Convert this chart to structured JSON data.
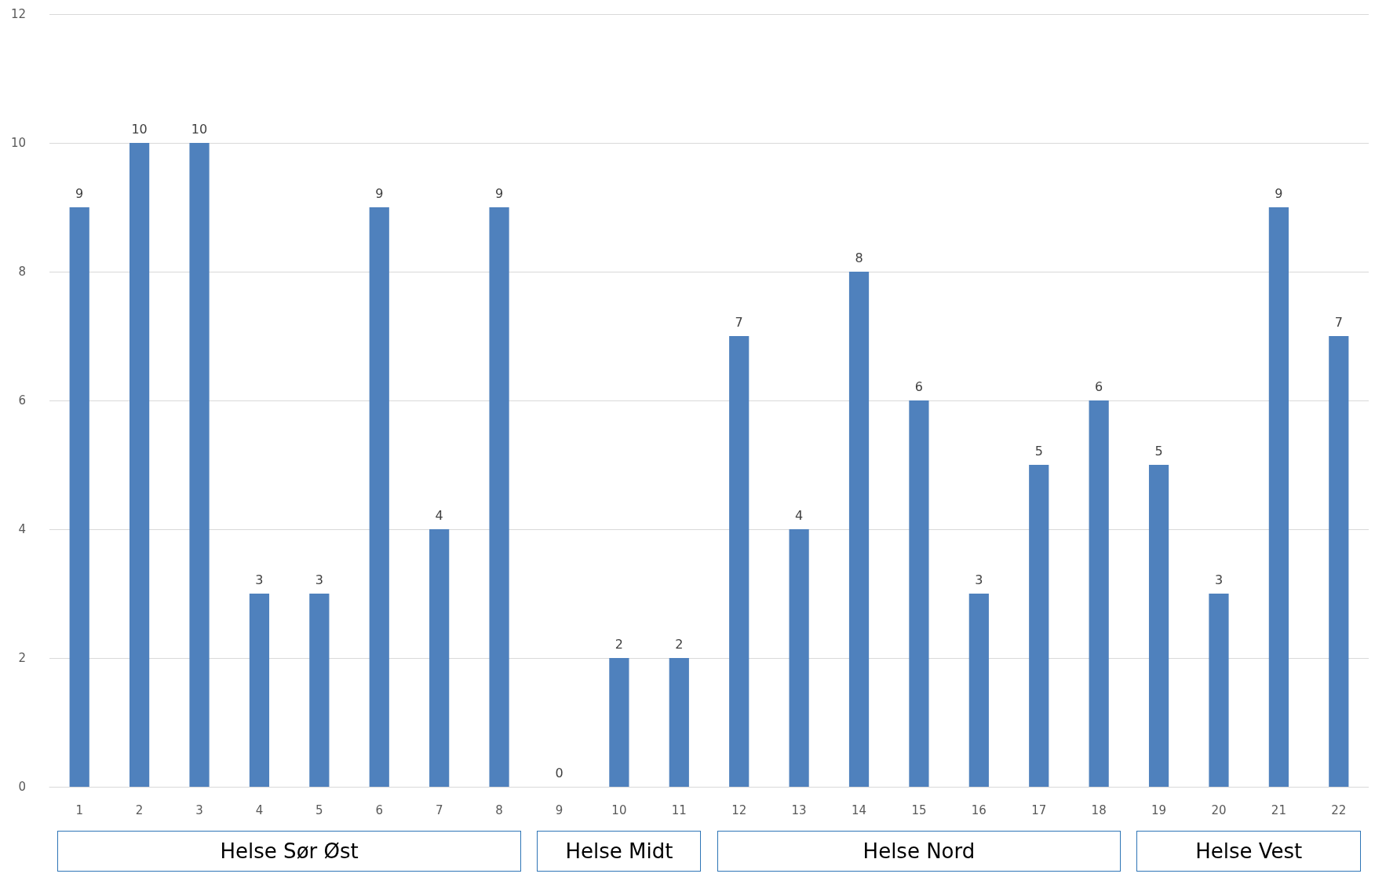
{
  "chart_data": {
    "type": "bar",
    "categories": [
      "1",
      "2",
      "3",
      "4",
      "5",
      "6",
      "7",
      "8",
      "9",
      "10",
      "11",
      "12",
      "13",
      "14",
      "15",
      "16",
      "17",
      "18",
      "19",
      "20",
      "21",
      "22"
    ],
    "values": [
      9,
      10,
      10,
      3,
      3,
      9,
      4,
      9,
      0,
      2,
      2,
      7,
      4,
      8,
      6,
      3,
      5,
      6,
      5,
      3,
      9,
      7
    ],
    "color": "#4f81bd",
    "ylim": [
      0,
      12
    ],
    "yticks": [
      0,
      2,
      4,
      6,
      8,
      10,
      12
    ],
    "grid": "y",
    "data_labels": true,
    "annotations": [
      "Helse Sør Øst",
      "Helse Midt",
      "Helse Nord",
      "Helse Vest"
    ]
  }
}
